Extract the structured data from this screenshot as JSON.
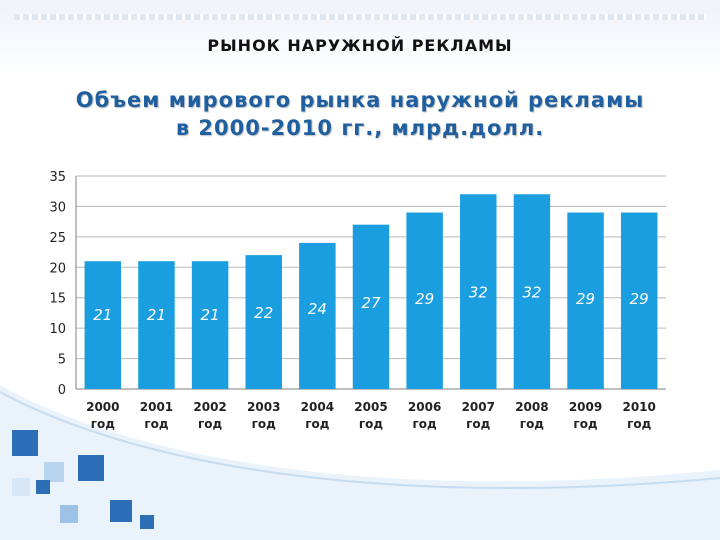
{
  "slide": {
    "title": "РЫНОК НАРУЖНОЙ РЕКЛАМЫ"
  },
  "chart_data": {
    "type": "bar",
    "title_lines": [
      "Объем мирового рынка наружной рекламы",
      "в 2000-2010 гг., млрд.долл."
    ],
    "categories": [
      [
        "2000",
        "год"
      ],
      [
        "2001",
        "год"
      ],
      [
        "2002",
        "год"
      ],
      [
        "2003",
        "год"
      ],
      [
        "2004",
        "год"
      ],
      [
        "2005",
        "год"
      ],
      [
        "2006",
        "год"
      ],
      [
        "2007",
        "год"
      ],
      [
        "2008",
        "год"
      ],
      [
        "2009",
        "год"
      ],
      [
        "2010",
        "год"
      ]
    ],
    "values": [
      21,
      21,
      21,
      22,
      24,
      27,
      29,
      32,
      32,
      29,
      29
    ],
    "yticks": [
      0,
      5,
      10,
      15,
      20,
      25,
      30,
      35
    ],
    "ylim": [
      0,
      35
    ],
    "xlabel": "",
    "ylabel": "",
    "grid": true,
    "legend": "none",
    "colors": {
      "bar": "#1a9ee0",
      "label": "#ffffff",
      "gridline": "#b9b9b9",
      "axis": "#7f7f7f",
      "tick": "#222222"
    }
  }
}
